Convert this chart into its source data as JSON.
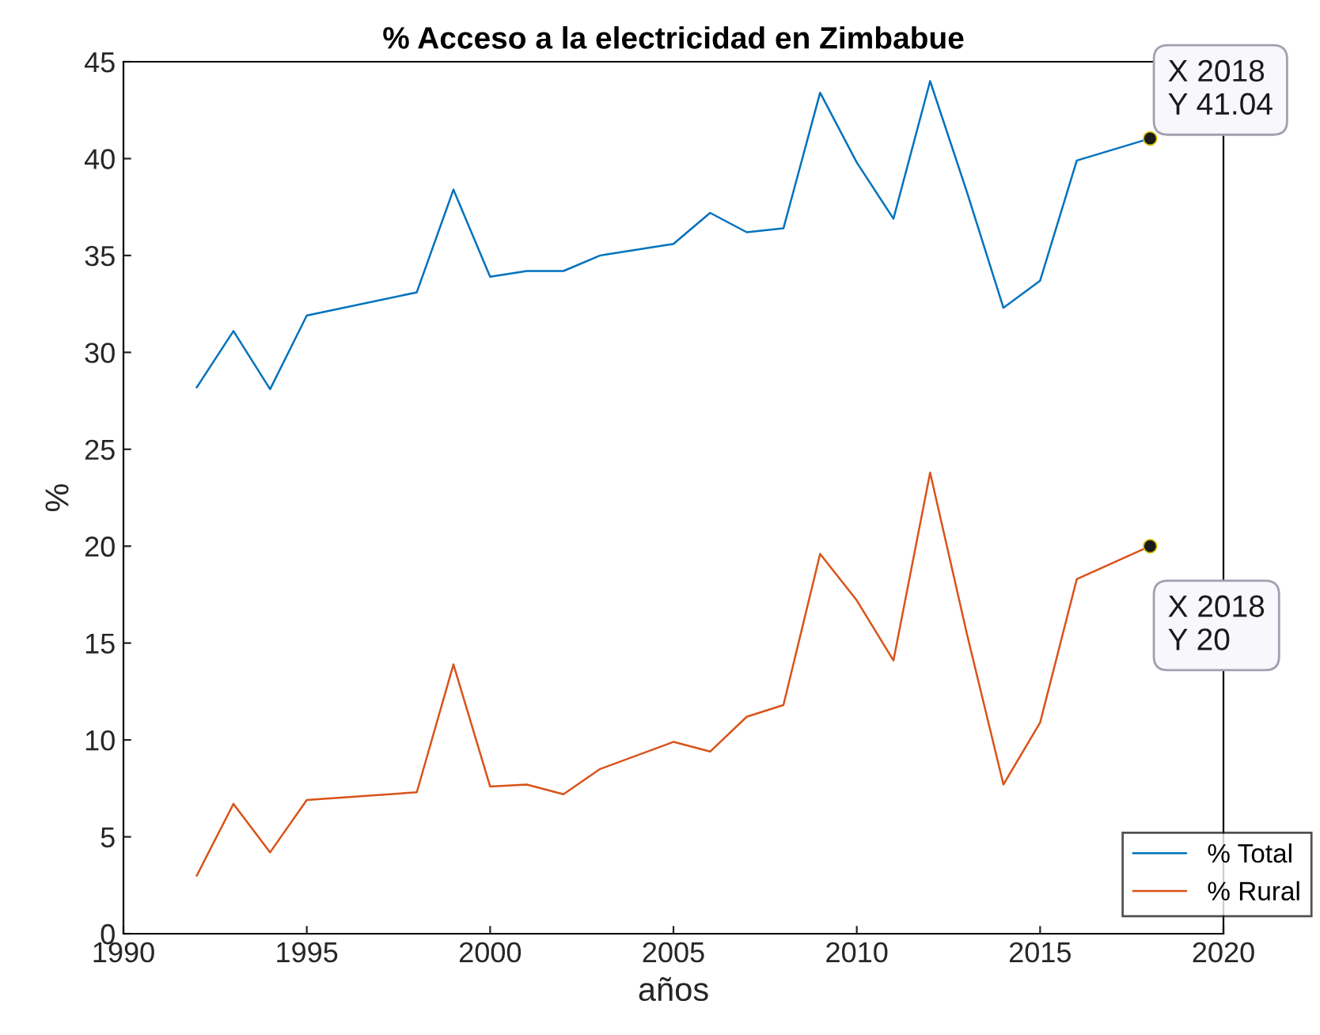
{
  "chart_data": {
    "type": "line",
    "title": "% Acceso a la electricidad en Zimbabue",
    "xlabel": "años",
    "ylabel": "%",
    "xlim": [
      1990,
      2020
    ],
    "xticks": [
      1990,
      1995,
      2000,
      2005,
      2010,
      2015,
      2020
    ],
    "ylim": [
      0,
      45
    ],
    "yticks": [
      0,
      5,
      10,
      15,
      20,
      25,
      30,
      35,
      40,
      45
    ],
    "grid": false,
    "legend": "bottom right",
    "line_style": "solid",
    "marker": "none",
    "series": [
      {
        "name": "% Total",
        "color": "#0072bd",
        "x": [
          1992,
          1993,
          1994,
          1995,
          1998,
          1999,
          2000,
          2001,
          2002,
          2003,
          2005,
          2006,
          2007,
          2008,
          2009,
          2010,
          2011,
          2012,
          2013,
          2014,
          2015,
          2016,
          2018
        ],
        "values": [
          28.2,
          31.1,
          28.1,
          31.9,
          33.1,
          38.4,
          33.9,
          34.2,
          34.2,
          35.0,
          35.6,
          37.2,
          36.2,
          36.4,
          43.4,
          39.8,
          36.9,
          44.0,
          38.3,
          32.3,
          33.7,
          39.9,
          41.04
        ]
      },
      {
        "name": "% Rural",
        "color": "#d95319",
        "x": [
          1992,
          1993,
          1994,
          1995,
          1998,
          1999,
          2000,
          2001,
          2002,
          2003,
          2005,
          2006,
          2007,
          2008,
          2009,
          2010,
          2011,
          2012,
          2013,
          2014,
          2015,
          2016,
          2018
        ],
        "values": [
          3.0,
          6.7,
          4.2,
          6.9,
          7.3,
          13.9,
          7.6,
          7.7,
          7.2,
          8.5,
          9.9,
          9.4,
          11.2,
          11.8,
          19.6,
          17.2,
          14.1,
          23.8,
          15.5,
          7.7,
          10.9,
          18.3,
          20
        ]
      }
    ],
    "annotations": [
      {
        "text": "X 2018\nY 41.04",
        "x": 2018,
        "y": 41.04
      },
      {
        "text": "X 2018\nY 20",
        "x": 2018,
        "y": 20
      }
    ]
  }
}
